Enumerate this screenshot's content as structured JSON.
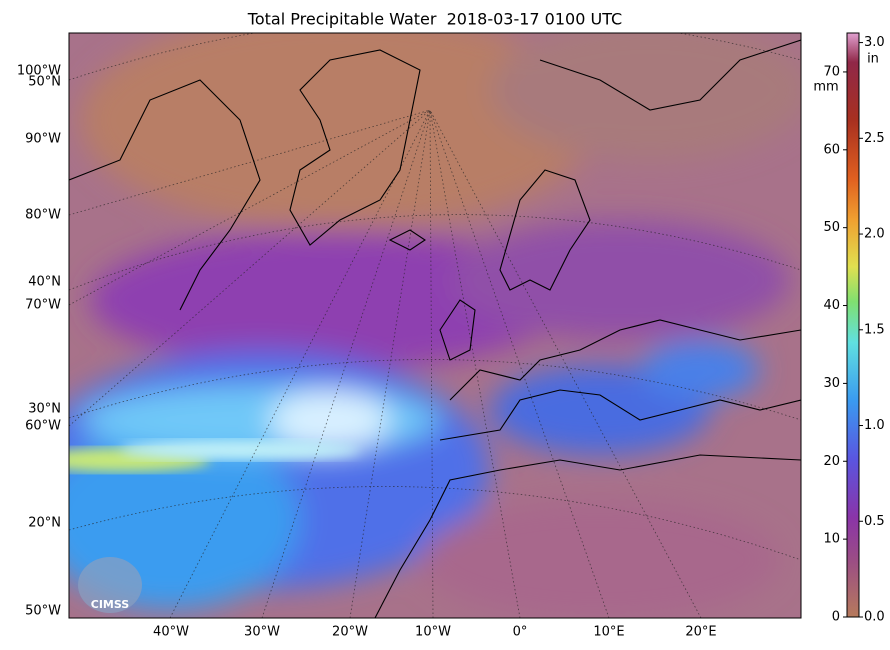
{
  "title": "Total Precipitable Water  2018-03-17 0100 UTC",
  "map": {
    "lat_labels": [
      "50°N",
      "40°N",
      "30°N",
      "20°N"
    ],
    "lon_labels_left": [
      "100°W",
      "90°W",
      "80°W",
      "70°W",
      "60°W",
      "50°W"
    ],
    "lon_labels_bottom": [
      "40°W",
      "30°W",
      "20°W",
      "10°W",
      "0°",
      "10°E",
      "20°E"
    ],
    "logo": "CIMSS"
  },
  "colorbar": {
    "mm": {
      "unit": "mm",
      "lim": [
        0,
        75
      ],
      "ticks": [
        0,
        10,
        20,
        30,
        40,
        50,
        60,
        70
      ]
    },
    "in": {
      "unit": "in",
      "lim": [
        0,
        3.05
      ],
      "ticks": [
        {
          "value": 0,
          "label": "0.0"
        },
        0.5,
        {
          "value": 1,
          "label": "1.0"
        },
        1.5,
        {
          "value": 2,
          "label": "2.0"
        },
        2.5,
        {
          "value": 3,
          "label": "3.0"
        }
      ]
    }
  }
}
